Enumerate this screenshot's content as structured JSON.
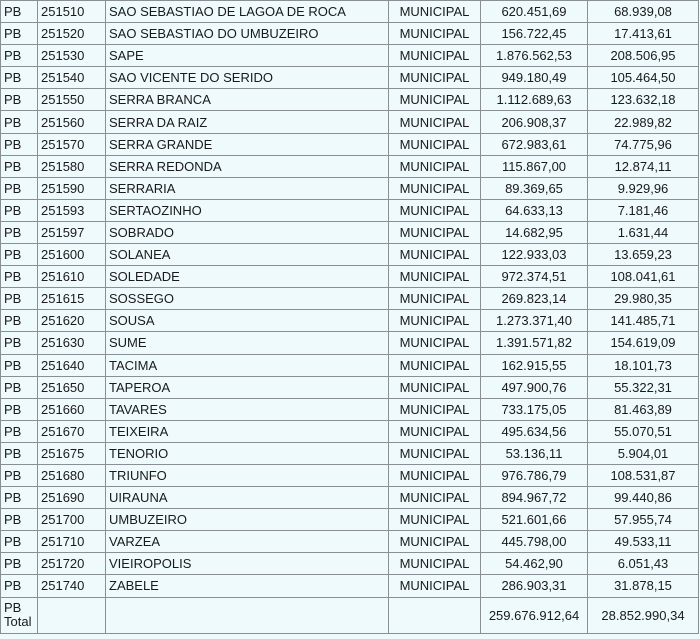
{
  "rows": [
    {
      "uf": "PB",
      "code": "251510",
      "name": "SAO SEBASTIAO DE LAGOA DE ROCA",
      "type": "MUNICIPAL",
      "value1": "620.451,69",
      "value2": "68.939,08"
    },
    {
      "uf": "PB",
      "code": "251520",
      "name": "SAO SEBASTIAO DO UMBUZEIRO",
      "type": "MUNICIPAL",
      "value1": "156.722,45",
      "value2": "17.413,61"
    },
    {
      "uf": "PB",
      "code": "251530",
      "name": "SAPE",
      "type": "MUNICIPAL",
      "value1": "1.876.562,53",
      "value2": "208.506,95"
    },
    {
      "uf": "PB",
      "code": "251540",
      "name": "SAO VICENTE DO SERIDO",
      "type": "MUNICIPAL",
      "value1": "949.180,49",
      "value2": "105.464,50"
    },
    {
      "uf": "PB",
      "code": "251550",
      "name": "SERRA BRANCA",
      "type": "MUNICIPAL",
      "value1": "1.112.689,63",
      "value2": "123.632,18"
    },
    {
      "uf": "PB",
      "code": "251560",
      "name": "SERRA DA RAIZ",
      "type": "MUNICIPAL",
      "value1": "206.908,37",
      "value2": "22.989,82"
    },
    {
      "uf": "PB",
      "code": "251570",
      "name": "SERRA GRANDE",
      "type": "MUNICIPAL",
      "value1": "672.983,61",
      "value2": "74.775,96"
    },
    {
      "uf": "PB",
      "code": "251580",
      "name": "SERRA REDONDA",
      "type": "MUNICIPAL",
      "value1": "115.867,00",
      "value2": "12.874,11"
    },
    {
      "uf": "PB",
      "code": "251590",
      "name": "SERRARIA",
      "type": "MUNICIPAL",
      "value1": "89.369,65",
      "value2": "9.929,96"
    },
    {
      "uf": "PB",
      "code": "251593",
      "name": "SERTAOZINHO",
      "type": "MUNICIPAL",
      "value1": "64.633,13",
      "value2": "7.181,46"
    },
    {
      "uf": "PB",
      "code": "251597",
      "name": "SOBRADO",
      "type": "MUNICIPAL",
      "value1": "14.682,95",
      "value2": "1.631,44"
    },
    {
      "uf": "PB",
      "code": "251600",
      "name": "SOLANEA",
      "type": "MUNICIPAL",
      "value1": "122.933,03",
      "value2": "13.659,23"
    },
    {
      "uf": "PB",
      "code": "251610",
      "name": "SOLEDADE",
      "type": "MUNICIPAL",
      "value1": "972.374,51",
      "value2": "108.041,61"
    },
    {
      "uf": "PB",
      "code": "251615",
      "name": "SOSSEGO",
      "type": "MUNICIPAL",
      "value1": "269.823,14",
      "value2": "29.980,35"
    },
    {
      "uf": "PB",
      "code": "251620",
      "name": "SOUSA",
      "type": "MUNICIPAL",
      "value1": "1.273.371,40",
      "value2": "141.485,71"
    },
    {
      "uf": "PB",
      "code": "251630",
      "name": "SUME",
      "type": "MUNICIPAL",
      "value1": "1.391.571,82",
      "value2": "154.619,09"
    },
    {
      "uf": "PB",
      "code": "251640",
      "name": "TACIMA",
      "type": "MUNICIPAL",
      "value1": "162.915,55",
      "value2": "18.101,73"
    },
    {
      "uf": "PB",
      "code": "251650",
      "name": "TAPEROA",
      "type": "MUNICIPAL",
      "value1": "497.900,76",
      "value2": "55.322,31"
    },
    {
      "uf": "PB",
      "code": "251660",
      "name": "TAVARES",
      "type": "MUNICIPAL",
      "value1": "733.175,05",
      "value2": "81.463,89"
    },
    {
      "uf": "PB",
      "code": "251670",
      "name": "TEIXEIRA",
      "type": "MUNICIPAL",
      "value1": "495.634,56",
      "value2": "55.070,51"
    },
    {
      "uf": "PB",
      "code": "251675",
      "name": "TENORIO",
      "type": "MUNICIPAL",
      "value1": "53.136,11",
      "value2": "5.904,01"
    },
    {
      "uf": "PB",
      "code": "251680",
      "name": "TRIUNFO",
      "type": "MUNICIPAL",
      "value1": "976.786,79",
      "value2": "108.531,87"
    },
    {
      "uf": "PB",
      "code": "251690",
      "name": "UIRAUNA",
      "type": "MUNICIPAL",
      "value1": "894.967,72",
      "value2": "99.440,86"
    },
    {
      "uf": "PB",
      "code": "251700",
      "name": "UMBUZEIRO",
      "type": "MUNICIPAL",
      "value1": "521.601,66",
      "value2": "57.955,74"
    },
    {
      "uf": "PB",
      "code": "251710",
      "name": "VARZEA",
      "type": "MUNICIPAL",
      "value1": "445.798,00",
      "value2": "49.533,11"
    },
    {
      "uf": "PB",
      "code": "251720",
      "name": "VIEIROPOLIS",
      "type": "MUNICIPAL",
      "value1": "54.462,90",
      "value2": "6.051,43"
    },
    {
      "uf": "PB",
      "code": "251740",
      "name": "ZABELE",
      "type": "MUNICIPAL",
      "value1": "286.903,31",
      "value2": "31.878,15"
    }
  ],
  "total": {
    "label": "PB Total",
    "value1": "259.676.912,64",
    "value2": "28.852.990,34"
  }
}
